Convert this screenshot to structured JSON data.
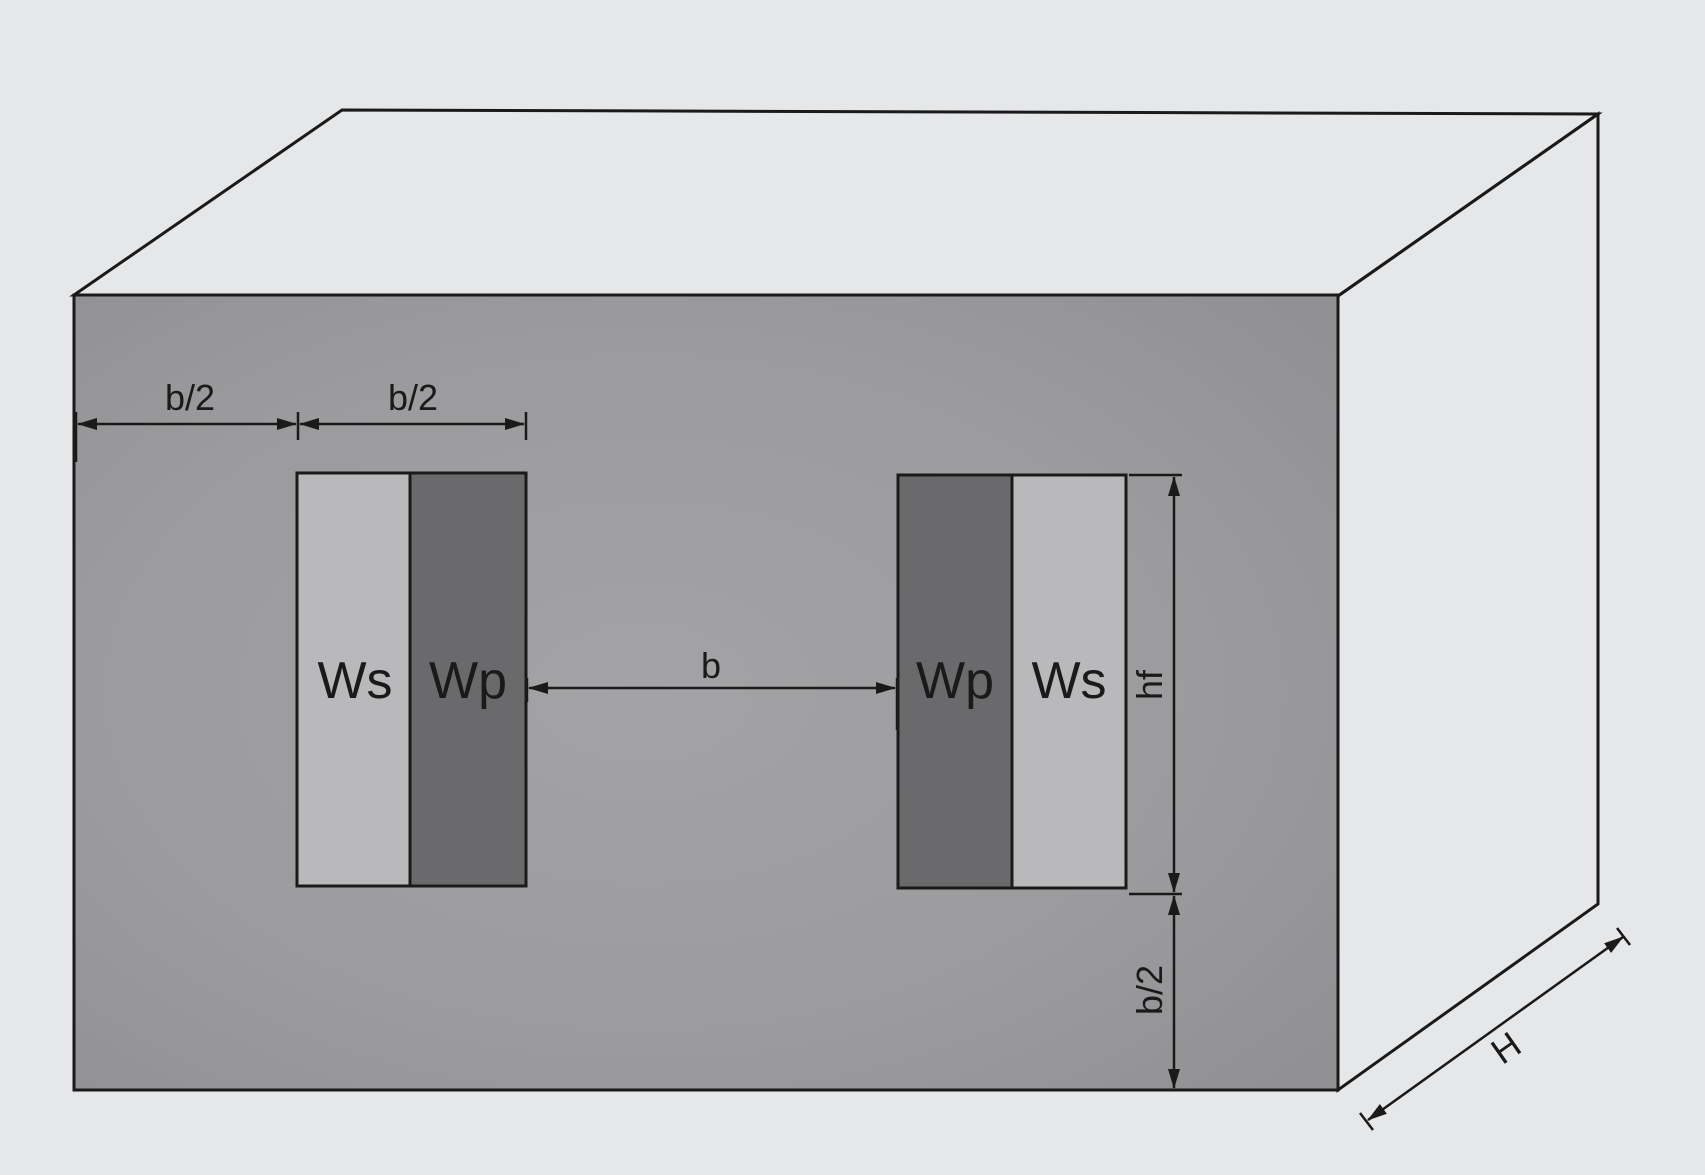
{
  "diagram": {
    "dimension_labels": {
      "top_left": "b/2",
      "top_window": "b/2",
      "center_gap": "b",
      "window_height": "hf",
      "bottom_right": "b/2",
      "depth": "H"
    },
    "windows": {
      "left": {
        "outer": "Ws",
        "inner": "Wp"
      },
      "right": {
        "inner": "Wp",
        "outer": "Ws"
      }
    },
    "colors": {
      "background": "#e6e7e9",
      "front_face": "#9a9a9c",
      "top_face": "#e6e7e9",
      "side_face": "#e9eaec",
      "secondary_winding": "#b9b9bb",
      "primary_winding": "#6a6a6c",
      "line": "#1a1a1a"
    }
  }
}
